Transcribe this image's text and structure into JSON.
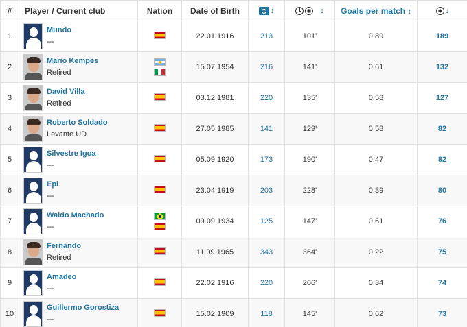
{
  "header": {
    "num": "#",
    "player": "Player / Current club",
    "nation": "Nation",
    "dob": "Date of Birth",
    "apps_icon": "pitch-icon",
    "mins_icon": "clock-ball-icon",
    "goals_per_match": "Goals per match",
    "goals_icon": "ball-icon",
    "sort_arrow": "↕",
    "sort_desc_arrow": "↓"
  },
  "colors": {
    "link": "#1d75a3",
    "border": "#e2e2e2",
    "portrait_default": "#1f3a66"
  },
  "rows": [
    {
      "rank": "1",
      "name": "Mundo",
      "club": "---",
      "portrait": "default",
      "flags": [
        "spain"
      ],
      "dob": "22.01.1916",
      "apps": "213",
      "mins_per_goal": "101'",
      "gpm": "0.89",
      "goals": "189"
    },
    {
      "rank": "2",
      "name": "Mario Kempes",
      "club": "Retired",
      "portrait": "photo",
      "flags": [
        "argentina",
        "italy"
      ],
      "dob": "15.07.1954",
      "apps": "216",
      "mins_per_goal": "141'",
      "gpm": "0.61",
      "goals": "132"
    },
    {
      "rank": "3",
      "name": "David Villa",
      "club": "Retired",
      "portrait": "photo",
      "flags": [
        "spain"
      ],
      "dob": "03.12.1981",
      "apps": "220",
      "mins_per_goal": "135'",
      "gpm": "0.58",
      "goals": "127"
    },
    {
      "rank": "4",
      "name": "Roberto Soldado",
      "club": "Levante UD",
      "portrait": "photo",
      "flags": [
        "spain"
      ],
      "dob": "27.05.1985",
      "apps": "141",
      "mins_per_goal": "129'",
      "gpm": "0.58",
      "goals": "82"
    },
    {
      "rank": "5",
      "name": "Silvestre Igoa",
      "club": "---",
      "portrait": "default",
      "flags": [
        "spain"
      ],
      "dob": "05.09.1920",
      "apps": "173",
      "mins_per_goal": "190'",
      "gpm": "0.47",
      "goals": "82"
    },
    {
      "rank": "6",
      "name": "Epi",
      "club": "---",
      "portrait": "default",
      "flags": [
        "spain"
      ],
      "dob": "23.04.1919",
      "apps": "203",
      "mins_per_goal": "228'",
      "gpm": "0.39",
      "goals": "80"
    },
    {
      "rank": "7",
      "name": "Waldo Machado",
      "club": "---",
      "portrait": "default",
      "flags": [
        "brazil",
        "spain"
      ],
      "dob": "09.09.1934",
      "apps": "125",
      "mins_per_goal": "147'",
      "gpm": "0.61",
      "goals": "76"
    },
    {
      "rank": "8",
      "name": "Fernando",
      "club": "Retired",
      "portrait": "photo",
      "flags": [
        "spain"
      ],
      "dob": "11.09.1965",
      "apps": "343",
      "mins_per_goal": "364'",
      "gpm": "0.22",
      "goals": "75"
    },
    {
      "rank": "9",
      "name": "Amadeo",
      "club": "---",
      "portrait": "default",
      "flags": [
        "spain"
      ],
      "dob": "22.02.1916",
      "apps": "220",
      "mins_per_goal": "266'",
      "gpm": "0.34",
      "goals": "74"
    },
    {
      "rank": "10",
      "name": "Guillermo Gorostiza",
      "club": "---",
      "portrait": "default",
      "flags": [
        "spain"
      ],
      "dob": "15.02.1909",
      "apps": "118",
      "mins_per_goal": "145'",
      "gpm": "0.62",
      "goals": "73"
    }
  ]
}
